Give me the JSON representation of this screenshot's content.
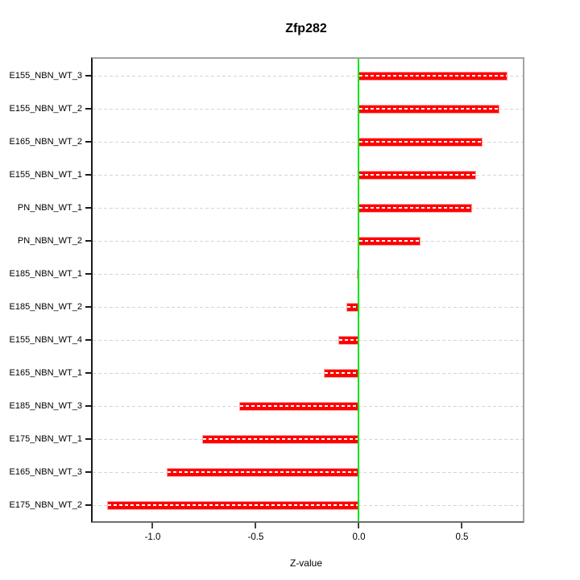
{
  "title": "Zfp282",
  "chart_data": {
    "type": "bar",
    "orientation": "horizontal",
    "title": "Zfp282",
    "xlabel": "Z-value",
    "categories": [
      "E155_NBN_WT_3",
      "E155_NBN_WT_2",
      "E165_NBN_WT_2",
      "E155_NBN_WT_1",
      "PN_NBN_WT_1",
      "PN_NBN_WT_2",
      "E185_NBN_WT_1",
      "E185_NBN_WT_2",
      "E155_NBN_WT_4",
      "E165_NBN_WT_1",
      "E185_NBN_WT_3",
      "E175_NBN_WT_1",
      "E165_NBN_WT_3",
      "E175_NBN_WT_2"
    ],
    "values": [
      0.72,
      0.68,
      0.6,
      0.57,
      0.55,
      0.3,
      -0.01,
      -0.06,
      -0.1,
      -0.17,
      -0.58,
      -0.76,
      -0.93,
      -1.22
    ],
    "xlim": [
      -1.291,
      0.795
    ],
    "x_ticks": [
      -1.0,
      -0.5,
      0.0,
      0.5
    ],
    "x_tick_labels": [
      "-1.0",
      "-0.5",
      "0.0",
      "0.5"
    ],
    "grid": "dashed-horizontal",
    "zero_line": true,
    "legend": "none",
    "colors": {
      "bar": "#fe0000",
      "bar_border": "#ff9e9e",
      "zero_line": "#00e60a",
      "grid": "#d4d4d4",
      "box": "#a3a3a3",
      "axis": "#1a1a1a",
      "text": "#000000",
      "background": "#ffffff"
    }
  }
}
